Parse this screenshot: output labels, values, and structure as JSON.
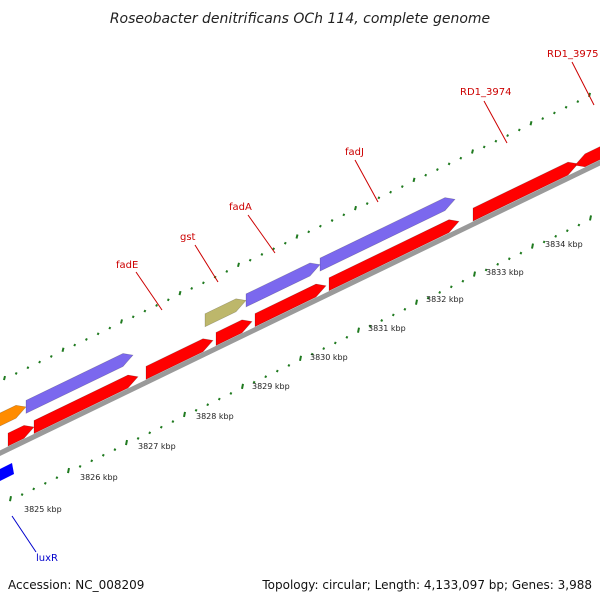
{
  "title": "Roseobacter denitrificans OCh 114, complete genome",
  "footer": {
    "accession": "Accession: NC_008209",
    "summary": "Topology: circular; Length: 4,133,097 bp; Genes: 3,988"
  },
  "ticks": [
    {
      "kbp": 3825,
      "label": "3825 kbp"
    },
    {
      "kbp": 3826,
      "label": "3826 kbp"
    },
    {
      "kbp": 3827,
      "label": "3827 kbp"
    },
    {
      "kbp": 3828,
      "label": "3828 kbp"
    },
    {
      "kbp": 3829,
      "label": "3829 kbp"
    },
    {
      "kbp": 3830,
      "label": "3830 kbp"
    },
    {
      "kbp": 3831,
      "label": "3831 kbp"
    },
    {
      "kbp": 3832,
      "label": "3832 kbp"
    },
    {
      "kbp": 3833,
      "label": "3833 kbp"
    },
    {
      "kbp": 3834,
      "label": "3834 kbp"
    }
  ],
  "colors": {
    "cds": "#ff0000",
    "cds_dark": "#c40000",
    "purple": "#7b68ee",
    "olive": "#bdb76b",
    "orange": "#ff8c00",
    "blue": "#0000ff",
    "backbone": "#999999",
    "tick": "#1f7a1f",
    "label_red": "#cc0000",
    "label_blue": "#0000cc"
  },
  "gene_labels": [
    {
      "name": "luxR",
      "color": "label_blue"
    },
    {
      "name": "fadE",
      "color": "label_red"
    },
    {
      "name": "gst",
      "color": "label_red"
    },
    {
      "name": "fadA",
      "color": "label_red"
    },
    {
      "name": "fadJ",
      "color": "label_red"
    },
    {
      "name": "RD1_3974",
      "color": "label_red"
    },
    {
      "name": "RD1_3975",
      "color": "label_red"
    }
  ]
}
